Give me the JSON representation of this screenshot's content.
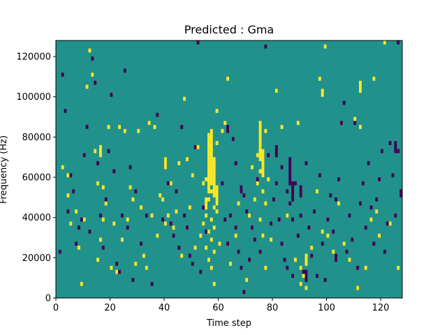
{
  "chart_data": {
    "type": "heatmap",
    "title": "Predicted : Gma",
    "xlabel": "Time step",
    "ylabel": "Frequency (Hz)",
    "xlim": [
      0,
      128
    ],
    "ylim": [
      0,
      128000
    ],
    "xticks": [
      0,
      20,
      40,
      60,
      80,
      100,
      120
    ],
    "yticks": [
      0,
      20000,
      40000,
      60000,
      80000,
      100000,
      120000
    ],
    "grid": false,
    "value_levels": [
      -1,
      0,
      1
    ],
    "colors": {
      "-1": "#440154",
      "0": "#21918c",
      "1": "#fde725"
    },
    "background_value": 0,
    "bin_height": 2000,
    "cells_high": [
      [
        3,
        64000
      ],
      [
        5,
        60000
      ],
      [
        5,
        50000
      ],
      [
        6,
        36000
      ],
      [
        8,
        42000
      ],
      [
        9,
        24000
      ],
      [
        10,
        6000
      ],
      [
        11,
        38000
      ],
      [
        12,
        104000
      ],
      [
        13,
        122000
      ],
      [
        14,
        110000
      ],
      [
        15,
        72000
      ],
      [
        16,
        56000
      ],
      [
        17,
        72000
      ],
      [
        18,
        54000
      ],
      [
        17,
        28000
      ],
      [
        16,
        18000
      ],
      [
        18,
        38000
      ],
      [
        19,
        46000
      ],
      [
        20,
        84000
      ],
      [
        21,
        14000
      ],
      [
        22,
        36000
      ],
      [
        23,
        12000
      ],
      [
        24,
        84000
      ],
      [
        25,
        28000
      ],
      [
        26,
        82000
      ],
      [
        27,
        38000
      ],
      [
        28,
        54000
      ],
      [
        29,
        48000
      ],
      [
        30,
        16000
      ],
      [
        31,
        82000
      ],
      [
        32,
        44000
      ],
      [
        33,
        20000
      ],
      [
        34,
        14000
      ],
      [
        35,
        86000
      ],
      [
        36,
        40000
      ],
      [
        37,
        84000
      ],
      [
        38,
        30000
      ],
      [
        39,
        50000
      ],
      [
        40,
        48000
      ],
      [
        41,
        36000
      ],
      [
        42,
        40000
      ],
      [
        43,
        56000
      ],
      [
        44,
        34000
      ],
      [
        45,
        42000
      ],
      [
        46,
        66000
      ],
      [
        47,
        20000
      ],
      [
        48,
        98000
      ],
      [
        49,
        68000
      ],
      [
        50,
        44000
      ],
      [
        51,
        60000
      ],
      [
        52,
        24000
      ],
      [
        53,
        74000
      ],
      [
        54,
        30000
      ],
      [
        55,
        56000
      ],
      [
        55,
        36000
      ],
      [
        56,
        58000
      ],
      [
        56,
        40000
      ],
      [
        56,
        24000
      ],
      [
        57,
        62000
      ],
      [
        57,
        48000
      ],
      [
        57,
        32000
      ],
      [
        57,
        18000
      ],
      [
        58,
        64000
      ],
      [
        58,
        52000
      ],
      [
        58,
        38000
      ],
      [
        58,
        28000
      ],
      [
        58,
        14000
      ],
      [
        59,
        66000
      ],
      [
        59,
        44000
      ],
      [
        59,
        34000
      ],
      [
        59,
        22000
      ],
      [
        59,
        6000
      ],
      [
        60,
        76000
      ],
      [
        60,
        92000
      ],
      [
        60,
        42000
      ],
      [
        61,
        26000
      ],
      [
        62,
        82000
      ],
      [
        63,
        86000
      ],
      [
        64,
        108000
      ],
      [
        65,
        16000
      ],
      [
        67,
        30000
      ],
      [
        68,
        46000
      ],
      [
        69,
        54000
      ],
      [
        71,
        8000
      ],
      [
        72,
        40000
      ],
      [
        73,
        64000
      ],
      [
        74,
        48000
      ],
      [
        75,
        70000
      ],
      [
        75,
        56000
      ],
      [
        76,
        72000
      ],
      [
        76,
        62000
      ],
      [
        76,
        38000
      ],
      [
        77,
        66000
      ],
      [
        77,
        52000
      ],
      [
        77,
        30000
      ],
      [
        78,
        46000
      ],
      [
        78,
        82000
      ],
      [
        78,
        14000
      ],
      [
        79,
        58000
      ],
      [
        80,
        28000
      ],
      [
        82,
        102000
      ],
      [
        84,
        84000
      ],
      [
        86,
        40000
      ],
      [
        89,
        18000
      ],
      [
        90,
        86000
      ],
      [
        91,
        14000
      ],
      [
        91,
        6000
      ],
      [
        92,
        10000
      ],
      [
        93,
        4000
      ],
      [
        95,
        24000
      ],
      [
        97,
        52000
      ],
      [
        98,
        108000
      ],
      [
        99,
        32000
      ],
      [
        100,
        124000
      ],
      [
        101,
        30000
      ],
      [
        103,
        22000
      ],
      [
        105,
        46000
      ],
      [
        107,
        26000
      ],
      [
        109,
        18000
      ],
      [
        111,
        88000
      ],
      [
        112,
        4000
      ],
      [
        113,
        84000
      ],
      [
        115,
        14000
      ],
      [
        117,
        38000
      ],
      [
        118,
        108000
      ],
      [
        119,
        42000
      ],
      [
        120,
        30000
      ],
      [
        122,
        126000
      ],
      [
        124,
        36000
      ],
      [
        127,
        14000
      ]
    ],
    "cells_low": [
      [
        2,
        22000
      ],
      [
        3,
        110000
      ],
      [
        4,
        92000
      ],
      [
        5,
        42000
      ],
      [
        6,
        60000
      ],
      [
        7,
        52000
      ],
      [
        8,
        26000
      ],
      [
        9,
        34000
      ],
      [
        10,
        38000
      ],
      [
        11,
        70000
      ],
      [
        12,
        84000
      ],
      [
        13,
        32000
      ],
      [
        14,
        118000
      ],
      [
        15,
        106000
      ],
      [
        16,
        66000
      ],
      [
        17,
        40000
      ],
      [
        18,
        24000
      ],
      [
        19,
        48000
      ],
      [
        20,
        72000
      ],
      [
        21,
        100000
      ],
      [
        22,
        62000
      ],
      [
        23,
        16000
      ],
      [
        24,
        12000
      ],
      [
        25,
        40000
      ],
      [
        26,
        112000
      ],
      [
        27,
        34000
      ],
      [
        28,
        64000
      ],
      [
        29,
        8000
      ],
      [
        30,
        52000
      ],
      [
        32,
        26000
      ],
      [
        34,
        40000
      ],
      [
        36,
        6000
      ],
      [
        38,
        90000
      ],
      [
        40,
        38000
      ],
      [
        41,
        64000
      ],
      [
        42,
        56000
      ],
      [
        43,
        36000
      ],
      [
        44,
        30000
      ],
      [
        45,
        52000
      ],
      [
        46,
        24000
      ],
      [
        47,
        84000
      ],
      [
        48,
        40000
      ],
      [
        49,
        34000
      ],
      [
        50,
        20000
      ],
      [
        51,
        16000
      ],
      [
        52,
        74000
      ],
      [
        53,
        126000
      ],
      [
        54,
        12000
      ],
      [
        55,
        44000
      ],
      [
        56,
        32000
      ],
      [
        62,
        56000
      ],
      [
        63,
        38000
      ],
      [
        64,
        26000
      ],
      [
        65,
        40000
      ],
      [
        66,
        78000
      ],
      [
        67,
        66000
      ],
      [
        67,
        34000
      ],
      [
        68,
        22000
      ],
      [
        69,
        14000
      ],
      [
        70,
        50000
      ],
      [
        70,
        2000
      ],
      [
        71,
        42000
      ],
      [
        72,
        18000
      ],
      [
        73,
        34000
      ],
      [
        74,
        28000
      ],
      [
        75,
        58000
      ],
      [
        76,
        22000
      ],
      [
        78,
        124000
      ],
      [
        79,
        70000
      ],
      [
        80,
        36000
      ],
      [
        81,
        48000
      ],
      [
        82,
        56000
      ],
      [
        83,
        38000
      ],
      [
        84,
        64000
      ],
      [
        84,
        26000
      ],
      [
        85,
        18000
      ],
      [
        86,
        52000
      ],
      [
        86,
        14000
      ],
      [
        87,
        46000
      ],
      [
        88,
        38000
      ],
      [
        88,
        10000
      ],
      [
        89,
        56000
      ],
      [
        90,
        30000
      ],
      [
        91,
        40000
      ],
      [
        92,
        12000
      ],
      [
        93,
        66000
      ],
      [
        94,
        34000
      ],
      [
        95,
        20000
      ],
      [
        96,
        42000
      ],
      [
        97,
        10000
      ],
      [
        98,
        60000
      ],
      [
        99,
        26000
      ],
      [
        100,
        8000
      ],
      [
        101,
        38000
      ],
      [
        102,
        50000
      ],
      [
        103,
        32000
      ],
      [
        104,
        48000
      ],
      [
        105,
        58000
      ],
      [
        106,
        86000
      ],
      [
        107,
        96000
      ],
      [
        108,
        22000
      ],
      [
        109,
        40000
      ],
      [
        110,
        28000
      ],
      [
        111,
        86000
      ],
      [
        112,
        14000
      ],
      [
        113,
        46000
      ],
      [
        114,
        56000
      ],
      [
        115,
        34000
      ],
      [
        116,
        66000
      ],
      [
        117,
        44000
      ],
      [
        118,
        26000
      ],
      [
        119,
        48000
      ],
      [
        120,
        58000
      ],
      [
        121,
        72000
      ],
      [
        122,
        22000
      ],
      [
        123,
        36000
      ],
      [
        124,
        76000
      ],
      [
        125,
        60000
      ],
      [
        126,
        40000
      ],
      [
        127,
        72000
      ],
      [
        127,
        126000
      ]
    ],
    "cells_high_tall": [
      [
        57,
        52000,
        30000
      ],
      [
        58,
        56000,
        28000
      ],
      [
        59,
        50000,
        20000
      ],
      [
        76,
        68000,
        20000
      ],
      [
        77,
        60000,
        14000
      ],
      [
        60,
        46000,
        10000
      ],
      [
        56,
        44000,
        6000
      ],
      [
        17,
        70000,
        6000
      ],
      [
        113,
        102000,
        6000
      ],
      [
        99,
        100000,
        4000
      ],
      [
        93,
        16000,
        6000
      ],
      [
        41,
        64000,
        6000
      ]
    ],
    "cells_low_tall": [
      [
        87,
        56000,
        14000
      ],
      [
        88,
        48000,
        10000
      ],
      [
        82,
        70000,
        6000
      ],
      [
        91,
        50000,
        6000
      ],
      [
        93,
        8000,
        6000
      ],
      [
        126,
        72000,
        6000
      ],
      [
        128,
        50000,
        4000
      ],
      [
        64,
        82000,
        4000
      ],
      [
        69,
        52000,
        4000
      ],
      [
        104,
        18000,
        4000
      ]
    ]
  }
}
